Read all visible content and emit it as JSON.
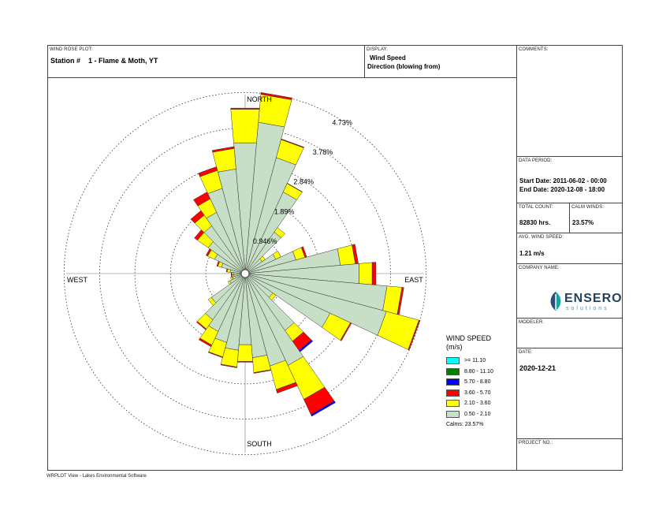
{
  "header": {
    "plot_label": "WIND ROSE PLOT:",
    "station": "Station #    1 - Flame & Moth, YT",
    "display_label": "DISPLAY:",
    "display_line1": "Wind Speed",
    "display_line2": "Direction (blowing from)"
  },
  "side_panel": {
    "comments_label": "COMMENTS:",
    "data_period_label": "DATA PERIOD:",
    "start_date": "Start Date: 2011-06-02 - 00:00",
    "end_date": "End Date: 2020-12-08 - 18:00",
    "total_count_label": "TOTAL COUNT:",
    "total_count": "82830 hrs.",
    "calm_winds_label": "CALM WINDS:",
    "calm_winds": "23.57%",
    "avg_speed_label": "AVG. WIND SPEED:",
    "avg_speed": "1.21 m/s",
    "company_label": "COMPANY NAME:",
    "company_logo_text": "ENSERO",
    "company_logo_sub": "solutions",
    "modeler_label": "MODELER:",
    "date_label": "DATE:",
    "date": "2020-12-21",
    "project_label": "PROJECT NO.:"
  },
  "footer": "WRPLOT View - Lakes Environmental Software",
  "chart_data": {
    "type": "wind-rose",
    "directions": 36,
    "direction_labels": {
      "north": "NORTH",
      "east": "EAST",
      "south": "SOUTH",
      "west": "WEST"
    },
    "ring_labels": [
      "0.946%",
      "1.89%",
      "2.84%",
      "3.78%",
      "4.73%"
    ],
    "ring_values": [
      0.946,
      1.89,
      2.84,
      3.78,
      4.73
    ],
    "speed_bins": [
      {
        "label": "0.50 - 2.10",
        "color": "#c6dfc6"
      },
      {
        "label": "2.10 - 3.60",
        "color": "#ffff00"
      },
      {
        "label": "3.60 - 5.70",
        "color": "#ff0000"
      },
      {
        "label": "5.70 - 8.80",
        "color": "#0000ff"
      },
      {
        "label": "8.80 - 11.10",
        "color": "#007f00"
      },
      {
        "label": ">= 11.10",
        "color": "#00ffff"
      }
    ],
    "legend_title_1": "WIND SPEED",
    "legend_title_2": "(m/s)",
    "calms_text": "Calms: 23.57%",
    "direction_deg": [
      0,
      10,
      20,
      30,
      40,
      50,
      60,
      70,
      80,
      90,
      100,
      110,
      120,
      130,
      140,
      150,
      160,
      170,
      180,
      190,
      200,
      210,
      220,
      230,
      240,
      250,
      260,
      270,
      280,
      290,
      300,
      310,
      320,
      330,
      340,
      350
    ],
    "frequencies_percent": [
      [
        3.4,
        0.9,
        0.03,
        0,
        0,
        0
      ],
      [
        3.95,
        0.75,
        0.05,
        0,
        0,
        0
      ],
      [
        3.1,
        0.5,
        0.02,
        0,
        0,
        0
      ],
      [
        2.3,
        0.25,
        0.01,
        0,
        0,
        0
      ],
      [
        1.25,
        0.15,
        0,
        0,
        0,
        0
      ],
      [
        0.45,
        0.1,
        0,
        0,
        0,
        0
      ],
      [
        0.8,
        0.15,
        0,
        0,
        0,
        0
      ],
      [
        1.3,
        0.25,
        0.05,
        0,
        0,
        0
      ],
      [
        2.45,
        0.4,
        0.08,
        0,
        0,
        0
      ],
      [
        2.95,
        0.35,
        0.1,
        0,
        0,
        0
      ],
      [
        3.7,
        0.4,
        0.05,
        0,
        0,
        0
      ],
      [
        3.8,
        0.9,
        0.03,
        0,
        0,
        0
      ],
      [
        2.4,
        0.6,
        0.03,
        0,
        0,
        0
      ],
      [
        0.8,
        0.1,
        0,
        0,
        0,
        0
      ],
      [
        1.75,
        0.35,
        0.3,
        0.05,
        0,
        0
      ],
      [
        2.6,
        1.0,
        0.45,
        0.05,
        0,
        0
      ],
      [
        2.45,
        0.65,
        0.1,
        0,
        0,
        0
      ],
      [
        2.15,
        0.4,
        0.02,
        0,
        0,
        0
      ],
      [
        1.8,
        0.45,
        0.02,
        0,
        0,
        0
      ],
      [
        1.95,
        0.45,
        0.02,
        0,
        0,
        0
      ],
      [
        1.8,
        0.4,
        0.02,
        0,
        0,
        0
      ],
      [
        1.6,
        0.4,
        0.05,
        0,
        0,
        0
      ],
      [
        1.4,
        0.3,
        0.03,
        0,
        0,
        0
      ],
      [
        1.0,
        0.1,
        0,
        0,
        0,
        0
      ],
      [
        0.35,
        0.05,
        0,
        0,
        0,
        0
      ],
      [
        0.25,
        0.05,
        0,
        0,
        0,
        0
      ],
      [
        0.2,
        0.05,
        0.02,
        0,
        0,
        0
      ],
      [
        0.2,
        0.05,
        0.02,
        0,
        0,
        0
      ],
      [
        0.3,
        0.08,
        0.02,
        0,
        0,
        0
      ],
      [
        0.55,
        0.1,
        0.03,
        0,
        0,
        0
      ],
      [
        0.8,
        0.2,
        0.05,
        0,
        0,
        0
      ],
      [
        1.1,
        0.35,
        0.1,
        0,
        0,
        0
      ],
      [
        1.45,
        0.35,
        0.15,
        0,
        0,
        0
      ],
      [
        1.7,
        0.4,
        0.2,
        0,
        0,
        0
      ],
      [
        2.25,
        0.5,
        0.1,
        0,
        0,
        0
      ],
      [
        2.7,
        0.55,
        0.05,
        0,
        0,
        0
      ]
    ]
  }
}
